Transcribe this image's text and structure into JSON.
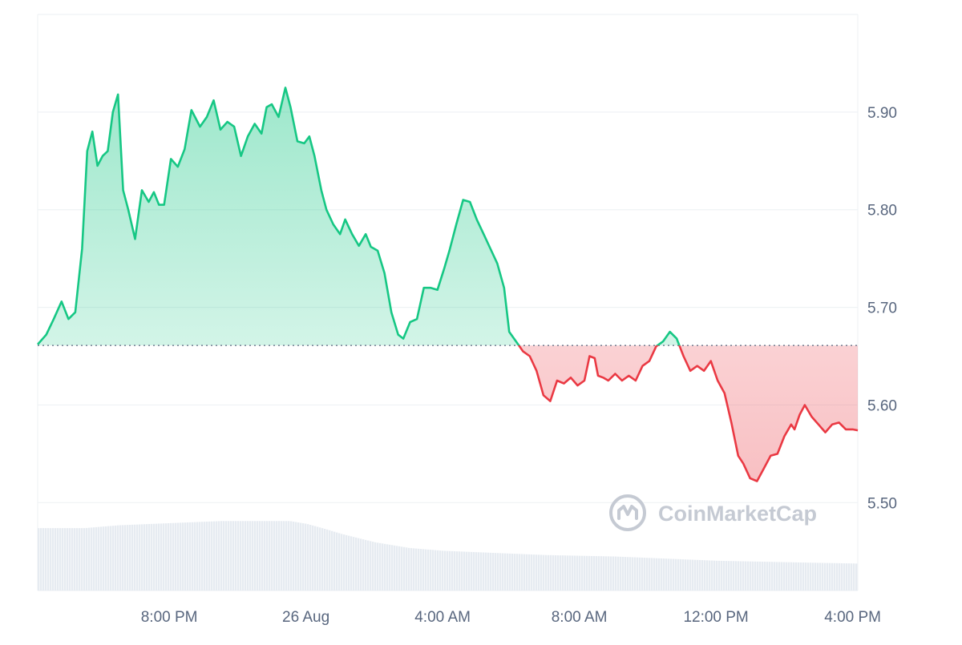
{
  "watermark": {
    "text": "CoinMarketCap"
  },
  "colors": {
    "up_line": "#16c784",
    "down_line": "#ea3943",
    "up_fill": "#16c784",
    "down_fill": "#ea3943",
    "grid": "#eff2f5",
    "baseline": "#58667e",
    "volume": "#e6ebf1",
    "watermark": "#c5cad3",
    "tick_text": "#58667e"
  },
  "chart_data": {
    "type": "area",
    "x_axis": {
      "ticks": [
        "8:00 PM",
        "26 Aug",
        "4:00 AM",
        "8:00 AM",
        "12:00 PM",
        "4:00 PM"
      ],
      "tick_hours": [
        20,
        24,
        28,
        32,
        36,
        40
      ],
      "range_hours": [
        16.15,
        40.15
      ]
    },
    "y_axis": {
      "position": "right",
      "ticks": [
        "5.90",
        "5.80",
        "5.70",
        "5.60",
        "5.50"
      ],
      "tick_values": [
        5.9,
        5.8,
        5.7,
        5.6,
        5.5
      ],
      "range": [
        5.41,
        6.0
      ]
    },
    "baseline": 5.661,
    "grid": true,
    "legend": "none",
    "price_series": {
      "x_hours": [
        16.15,
        16.4,
        16.62,
        16.85,
        17.05,
        17.25,
        17.45,
        17.6,
        17.75,
        17.9,
        18.05,
        18.2,
        18.35,
        18.5,
        18.65,
        18.8,
        19.0,
        19.2,
        19.4,
        19.55,
        19.7,
        19.85,
        20.05,
        20.25,
        20.45,
        20.65,
        20.9,
        21.1,
        21.3,
        21.5,
        21.7,
        21.9,
        22.1,
        22.3,
        22.5,
        22.7,
        22.85,
        23.0,
        23.2,
        23.4,
        23.55,
        23.75,
        23.95,
        24.1,
        24.25,
        24.45,
        24.6,
        24.8,
        25.0,
        25.15,
        25.35,
        25.55,
        25.75,
        25.9,
        26.1,
        26.3,
        26.5,
        26.7,
        26.85,
        27.05,
        27.25,
        27.45,
        27.65,
        27.85,
        28.05,
        28.2,
        28.4,
        28.6,
        28.8,
        29.0,
        29.2,
        29.4,
        29.6,
        29.8,
        29.95,
        30.15,
        30.35,
        30.55,
        30.75,
        30.95,
        31.15,
        31.35,
        31.55,
        31.75,
        31.95,
        32.15,
        32.3,
        32.45,
        32.55,
        32.7,
        32.85,
        33.05,
        33.25,
        33.45,
        33.65,
        33.85,
        34.05,
        34.25,
        34.45,
        34.65,
        34.85,
        35.05,
        35.25,
        35.45,
        35.65,
        35.85,
        36.05,
        36.25,
        36.45,
        36.65,
        36.8,
        37.0,
        37.2,
        37.4,
        37.6,
        37.8,
        38.0,
        38.2,
        38.3,
        38.45,
        38.6,
        38.8,
        39.0,
        39.2,
        39.4,
        39.6,
        39.8,
        40.0,
        40.15
      ],
      "values": [
        5.662,
        5.672,
        5.688,
        5.706,
        5.688,
        5.695,
        5.76,
        5.86,
        5.88,
        5.845,
        5.855,
        5.86,
        5.9,
        5.918,
        5.82,
        5.8,
        5.77,
        5.82,
        5.808,
        5.818,
        5.805,
        5.805,
        5.852,
        5.844,
        5.862,
        5.902,
        5.885,
        5.895,
        5.912,
        5.882,
        5.89,
        5.885,
        5.855,
        5.875,
        5.888,
        5.878,
        5.905,
        5.908,
        5.895,
        5.925,
        5.905,
        5.87,
        5.868,
        5.875,
        5.855,
        5.82,
        5.8,
        5.785,
        5.775,
        5.79,
        5.775,
        5.763,
        5.775,
        5.762,
        5.758,
        5.735,
        5.695,
        5.672,
        5.668,
        5.685,
        5.688,
        5.72,
        5.72,
        5.718,
        5.74,
        5.758,
        5.785,
        5.81,
        5.808,
        5.79,
        5.775,
        5.76,
        5.745,
        5.72,
        5.675,
        5.665,
        5.655,
        5.65,
        5.635,
        5.61,
        5.604,
        5.625,
        5.622,
        5.628,
        5.62,
        5.625,
        5.65,
        5.648,
        5.63,
        5.628,
        5.625,
        5.632,
        5.625,
        5.63,
        5.625,
        5.64,
        5.645,
        5.66,
        5.665,
        5.675,
        5.668,
        5.65,
        5.635,
        5.64,
        5.635,
        5.645,
        5.625,
        5.612,
        5.582,
        5.548,
        5.54,
        5.525,
        5.522,
        5.535,
        5.548,
        5.55,
        5.568,
        5.58,
        5.575,
        5.59,
        5.6,
        5.588,
        5.58,
        5.572,
        5.58,
        5.582,
        5.575,
        5.575,
        5.574
      ]
    },
    "volume_series": {
      "x_hours": [
        16.15,
        17.5,
        18.5,
        19.5,
        20.5,
        21.5,
        22.5,
        23.0,
        23.5,
        24.0,
        24.3,
        24.6,
        25.0,
        25.5,
        26.0,
        26.5,
        27.0,
        28.0,
        29.0,
        30.0,
        31.0,
        32.0,
        33.0,
        34.0,
        35.0,
        36.0,
        37.0,
        38.0,
        39.0,
        40.15
      ],
      "values": [
        0.44,
        0.44,
        0.46,
        0.47,
        0.48,
        0.49,
        0.49,
        0.49,
        0.49,
        0.47,
        0.45,
        0.43,
        0.4,
        0.37,
        0.34,
        0.32,
        0.3,
        0.28,
        0.27,
        0.26,
        0.25,
        0.245,
        0.24,
        0.23,
        0.22,
        0.21,
        0.205,
        0.2,
        0.195,
        0.19
      ]
    }
  }
}
